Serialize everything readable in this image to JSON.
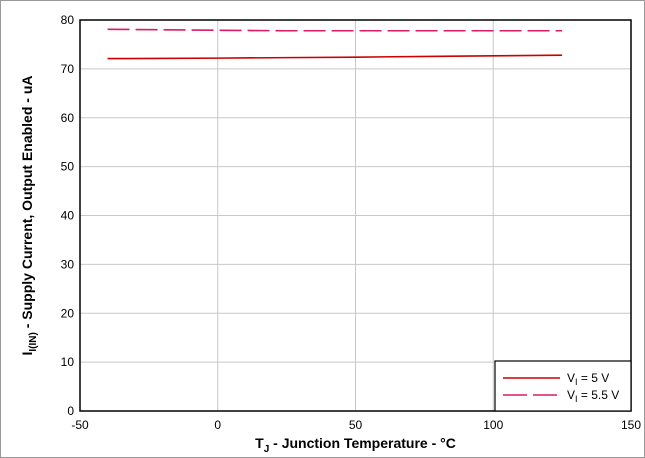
{
  "chart_data": {
    "type": "line",
    "xlabel": {
      "main": "T",
      "sub": "J",
      "rest": " - Junction Temperature - °C"
    },
    "ylabel": {
      "main": "I",
      "sub": "I(IN)",
      "rest": " - Supply Current, Output Enabled - uA"
    },
    "xlim": [
      -50,
      150
    ],
    "ylim": [
      0,
      80
    ],
    "x_ticks": [
      -50,
      0,
      50,
      100,
      150
    ],
    "y_ticks": [
      0,
      10,
      20,
      30,
      40,
      50,
      60,
      70,
      80
    ],
    "grid": true,
    "legend_position": "bottom-right",
    "series": [
      {
        "name": {
          "main": "V",
          "sub": "I",
          "rest": " = 5 V"
        },
        "color": "#cc0000",
        "dash": "solid",
        "x": [
          -40,
          0,
          25,
          50,
          85,
          125
        ],
        "y": [
          72.1,
          72.2,
          72.3,
          72.4,
          72.6,
          72.8
        ]
      },
      {
        "name": {
          "main": "V",
          "sub": "I",
          "rest": " = 5.5 V"
        },
        "color": "#dd1a66",
        "dash": "dashed",
        "x": [
          -40,
          0,
          25,
          50,
          85,
          125
        ],
        "y": [
          78.1,
          77.9,
          77.8,
          77.8,
          77.8,
          77.8
        ]
      }
    ]
  }
}
